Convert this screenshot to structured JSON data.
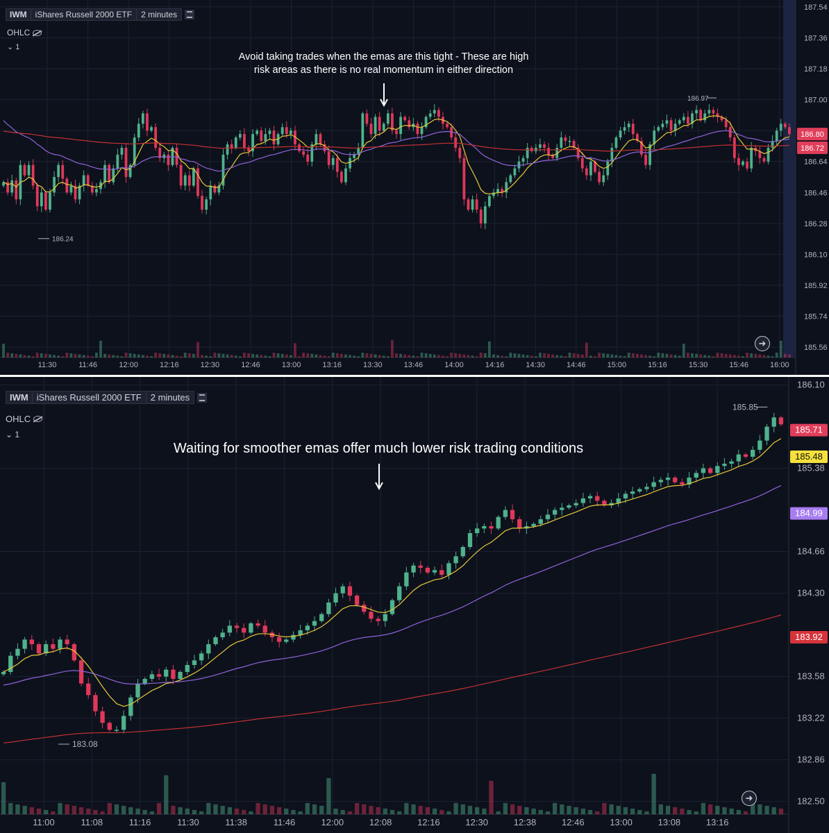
{
  "chart_data": [
    {
      "type": "candlestick",
      "symbol": "IWM",
      "name": "iShares Russell 2000 ETF",
      "timeframe": "2 minutes",
      "indicator_label": "OHLC",
      "indicator_count": "1",
      "annotation": "Avoid taking trades when the emas are this tight - These are high risk areas as there is no real momentum in either direction",
      "annotation_lines": [
        "Avoid taking trades when the emas are this tight - These are high",
        "risk areas as there is no real momentum in either direction"
      ],
      "x_ticks": [
        "11:30",
        "11:46",
        "12:00",
        "12:16",
        "12:30",
        "12:46",
        "13:00",
        "13:16",
        "13:30",
        "13:46",
        "14:00",
        "14:16",
        "14:30",
        "14:46",
        "15:00",
        "15:16",
        "15:30",
        "15:46",
        "16:00"
      ],
      "y_ticks": [
        "187.54",
        "187.36",
        "187.18",
        "187.00",
        "186.82",
        "186.64",
        "186.46",
        "186.28",
        "186.10",
        "185.92",
        "185.74",
        "185.56"
      ],
      "ylim": [
        185.52,
        187.58
      ],
      "high_marker": "186.97",
      "low_marker": "186.24",
      "price_labels": [
        {
          "value": "186.80",
          "color": "#e03e5a"
        },
        {
          "value": "186.72",
          "color": "#e03e5a"
        }
      ],
      "ema_colors": {
        "fast": "#e8c93a",
        "mid": "#8e64d8",
        "slow": "#c23232"
      },
      "candle_colors": {
        "up": "#4fb28c",
        "down": "#e0385a"
      },
      "closes": [
        186.52,
        186.46,
        186.53,
        186.42,
        186.62,
        186.56,
        186.62,
        186.5,
        186.38,
        186.46,
        186.36,
        186.46,
        186.55,
        186.62,
        186.54,
        186.46,
        186.5,
        186.42,
        186.5,
        186.56,
        186.5,
        186.46,
        186.48,
        186.52,
        186.62,
        186.52,
        186.6,
        186.68,
        186.72,
        186.55,
        186.62,
        186.78,
        186.86,
        186.92,
        186.82,
        186.84,
        186.72,
        186.66,
        186.68,
        186.62,
        186.72,
        186.62,
        186.5,
        186.56,
        186.5,
        186.6,
        186.44,
        186.36,
        186.42,
        186.5,
        186.46,
        186.5,
        186.68,
        186.74,
        186.72,
        186.78,
        186.8,
        186.72,
        186.7,
        186.8,
        186.82,
        186.76,
        186.8,
        186.82,
        186.74,
        186.8,
        186.84,
        186.8,
        186.82,
        186.74,
        186.7,
        186.68,
        186.64,
        186.74,
        186.8,
        186.74,
        186.7,
        186.62,
        186.66,
        186.58,
        186.52,
        186.6,
        186.66,
        186.68,
        186.72,
        186.92,
        186.86,
        186.8,
        186.9,
        186.82,
        186.86,
        186.92,
        186.82,
        186.8,
        186.9,
        186.88,
        186.84,
        186.86,
        186.8,
        186.84,
        186.9,
        186.92,
        186.94,
        186.9,
        186.86,
        186.84,
        186.78,
        186.72,
        186.66,
        186.42,
        186.36,
        186.42,
        186.36,
        186.28,
        186.38,
        186.44,
        186.46,
        186.48,
        186.46,
        186.52,
        186.56,
        186.6,
        186.64,
        186.66,
        186.72,
        186.7,
        186.72,
        186.74,
        186.72,
        186.68,
        186.66,
        186.72,
        186.78,
        186.76,
        186.76,
        186.72,
        186.66,
        186.6,
        186.56,
        186.64,
        186.58,
        186.52,
        186.56,
        186.64,
        186.72,
        186.78,
        186.82,
        186.84,
        186.86,
        186.8,
        186.76,
        186.68,
        186.62,
        186.74,
        186.82,
        186.84,
        186.86,
        186.88,
        186.82,
        186.86,
        186.88,
        186.9,
        186.86,
        186.92,
        186.94,
        186.88,
        186.92,
        186.94,
        186.92,
        186.9,
        186.88,
        186.84,
        186.78,
        186.66,
        186.62,
        186.64,
        186.6,
        186.72,
        186.7,
        186.66,
        186.64,
        186.72,
        186.76,
        186.82,
        186.86,
        186.84,
        186.8
      ]
    },
    {
      "type": "candlestick",
      "symbol": "IWM",
      "name": "iShares Russell 2000 ETF",
      "timeframe": "2 minutes",
      "indicator_label": "OHLC",
      "indicator_count": "1",
      "annotation": "Waiting for smoother emas offer much lower risk trading conditions",
      "x_ticks": [
        "11:00",
        "11:08",
        "11:16",
        "11:30",
        "11:38",
        "11:46",
        "12:00",
        "12:08",
        "12:16",
        "12:30",
        "12:38",
        "12:46",
        "13:00",
        "13:08",
        "13:16"
      ],
      "y_ticks": [
        "186.10",
        "185.38",
        "184.66",
        "184.30",
        "183.58",
        "183.22",
        "182.86",
        "182.50"
      ],
      "ylim": [
        182.42,
        186.17
      ],
      "high_marker": "185.85",
      "low_marker": "183.08",
      "price_labels": [
        {
          "value": "185.71",
          "color": "#e03e5a"
        },
        {
          "value": "185.48",
          "color": "#f5e03c"
        },
        {
          "value": "184.99",
          "color": "#a77cf0"
        },
        {
          "value": "183.92",
          "color": "#d7333a"
        }
      ],
      "ema_colors": {
        "fast": "#e8c93a",
        "mid": "#8e64d8",
        "slow": "#c23232"
      },
      "candle_colors": {
        "up": "#4fb28c",
        "down": "#e0385a"
      },
      "closes": [
        183.62,
        183.76,
        183.82,
        183.9,
        183.86,
        183.78,
        183.86,
        183.82,
        183.9,
        183.86,
        183.72,
        183.52,
        183.42,
        183.28,
        183.18,
        183.12,
        183.12,
        183.24,
        183.4,
        183.52,
        183.56,
        183.6,
        183.58,
        183.64,
        183.56,
        183.62,
        183.68,
        183.72,
        183.78,
        183.86,
        183.92,
        183.96,
        184.02,
        184.0,
        183.96,
        184.04,
        184.02,
        183.96,
        183.92,
        183.88,
        183.9,
        183.94,
        183.98,
        184.02,
        184.06,
        184.12,
        184.22,
        184.3,
        184.36,
        184.28,
        184.2,
        184.14,
        184.08,
        184.06,
        184.12,
        184.24,
        184.36,
        184.48,
        184.54,
        184.52,
        184.48,
        184.5,
        184.46,
        184.56,
        184.62,
        184.7,
        184.82,
        184.86,
        184.88,
        184.86,
        184.96,
        185.02,
        184.94,
        184.86,
        184.88,
        184.9,
        184.94,
        184.98,
        185.02,
        185.04,
        185.06,
        185.08,
        185.12,
        185.14,
        185.1,
        185.06,
        185.08,
        185.12,
        185.16,
        185.18,
        185.2,
        185.22,
        185.26,
        185.28,
        185.3,
        185.26,
        185.24,
        185.3,
        185.34,
        185.38,
        185.34,
        185.4,
        185.42,
        185.44,
        185.5,
        185.48,
        185.54,
        185.62,
        185.74,
        185.82,
        185.76
      ]
    }
  ]
}
